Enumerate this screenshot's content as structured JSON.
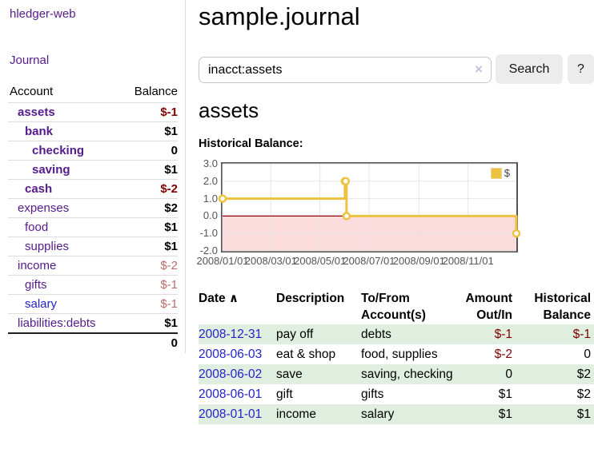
{
  "colors": {
    "link_purple": "#551a8b",
    "link_blue": "#2323cc",
    "negative_strong": "#7f0000",
    "negative_soft": "#bc6a66",
    "row_green": "#e0eedf",
    "series_gold": "#edc240"
  },
  "sidebar": {
    "brand": "hledger-web",
    "journal_label": "Journal",
    "accounts_header": {
      "account": "Account",
      "balance": "Balance"
    },
    "accounts": [
      {
        "name": "assets",
        "depth": 1,
        "bold": true,
        "blue": false,
        "balance": "$-1",
        "balance_class": "neg"
      },
      {
        "name": "bank",
        "depth": 2,
        "bold": true,
        "blue": false,
        "balance": "$1",
        "balance_class": ""
      },
      {
        "name": "checking",
        "depth": 3,
        "bold": true,
        "blue": false,
        "balance": "0",
        "balance_class": ""
      },
      {
        "name": "saving",
        "depth": 3,
        "bold": true,
        "blue": false,
        "balance": "$1",
        "balance_class": ""
      },
      {
        "name": "cash",
        "depth": 2,
        "bold": true,
        "blue": false,
        "balance": "$-2",
        "balance_class": "neg"
      },
      {
        "name": "expenses",
        "depth": 1,
        "bold": false,
        "blue": false,
        "balance": "$2",
        "balance_class": ""
      },
      {
        "name": "food",
        "depth": 2,
        "bold": false,
        "blue": false,
        "balance": "$1",
        "balance_class": ""
      },
      {
        "name": "supplies",
        "depth": 2,
        "bold": false,
        "blue": false,
        "balance": "$1",
        "balance_class": ""
      },
      {
        "name": "income",
        "depth": 1,
        "bold": false,
        "blue": false,
        "balance": "$-2",
        "balance_class": "negsoft"
      },
      {
        "name": "gifts",
        "depth": 2,
        "bold": false,
        "blue": false,
        "balance": "$-1",
        "balance_class": "negsoft"
      },
      {
        "name": "salary",
        "depth": 2,
        "bold": false,
        "blue": true,
        "balance": "$-1",
        "balance_class": "negsoft"
      },
      {
        "name": "liabilities:debts",
        "depth": 1,
        "bold": false,
        "blue": false,
        "balance": "$1",
        "balance_class": ""
      }
    ],
    "total": "0"
  },
  "main": {
    "title": "sample.journal",
    "search": {
      "value": "inacct:assets",
      "clear_icon": "×",
      "button_label": "Search",
      "help_label": "?"
    },
    "heading": "assets"
  },
  "chart_data": {
    "type": "line",
    "style": "steps-post",
    "title": "Historical Balance:",
    "series": [
      {
        "name": "$",
        "color": "#edc240",
        "points": [
          {
            "x": "2008-01-01",
            "y": 1
          },
          {
            "x": "2008-06-01",
            "y": 2
          },
          {
            "x": "2008-06-02",
            "y": 2
          },
          {
            "x": "2008-06-03",
            "y": 0
          },
          {
            "x": "2008-12-31",
            "y": -1
          }
        ]
      }
    ],
    "xlim": [
      "2008-01-01",
      "2008-12-31"
    ],
    "ylim": [
      -2,
      3
    ],
    "x_ticks": [
      "2008/01/01",
      "2008/03/01",
      "2008/05/01",
      "2008/07/01",
      "2008/09/01",
      "2008/11/01"
    ],
    "y_ticks": [
      "3.0",
      "2.0",
      "1.0",
      "0.0",
      "-1.0",
      "-2.0"
    ],
    "legend": {
      "label": "$",
      "position": "top-right"
    },
    "grid": true,
    "negative_region_color": "#fbdcdc",
    "zero_line_color": "#8b0000"
  },
  "register": {
    "sort_icon": "∧",
    "headers": {
      "date": "Date",
      "description": "Description",
      "accounts": "To/From Account(s)",
      "amount": "Amount Out/In",
      "balance": "Historical Balance"
    },
    "rows": [
      {
        "date": "2008-12-31",
        "description": "pay off",
        "accounts": "debts",
        "amount": "$-1",
        "amount_negative": true,
        "balance": "$-1",
        "balance_negative": true
      },
      {
        "date": "2008-06-03",
        "description": "eat & shop",
        "accounts": "food, supplies",
        "amount": "$-2",
        "amount_negative": true,
        "balance": "0",
        "balance_negative": false
      },
      {
        "date": "2008-06-02",
        "description": "save",
        "accounts": "saving, checking",
        "amount": "0",
        "amount_negative": false,
        "balance": "$2",
        "balance_negative": false
      },
      {
        "date": "2008-06-01",
        "description": "gift",
        "accounts": "gifts",
        "amount": "$1",
        "amount_negative": false,
        "balance": "$2",
        "balance_negative": false
      },
      {
        "date": "2008-01-01",
        "description": "income",
        "accounts": "salary",
        "amount": "$1",
        "amount_negative": false,
        "balance": "$1",
        "balance_negative": false
      }
    ]
  }
}
